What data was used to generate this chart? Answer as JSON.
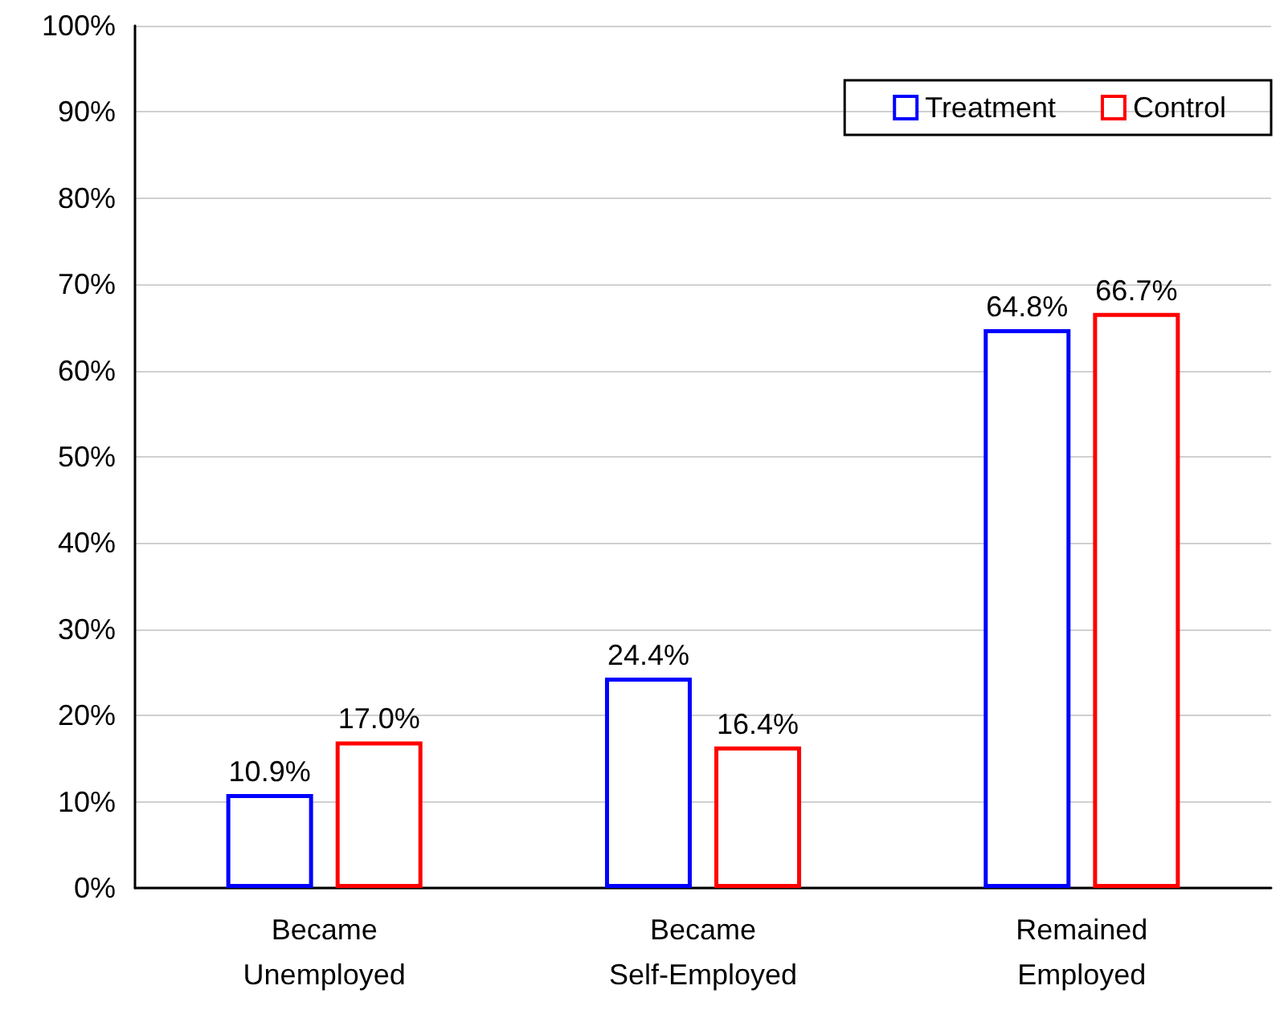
{
  "chart_data": {
    "type": "bar",
    "categories": [
      "Became Unemployed",
      "Became Self-Employed",
      "Remained Employed"
    ],
    "series": [
      {
        "name": "Treatment",
        "color": "#0000ff",
        "values": [
          10.9,
          24.4,
          64.8
        ],
        "value_labels": [
          "10.9%",
          "24.4%",
          "64.8%"
        ]
      },
      {
        "name": "Control",
        "color": "#ff0000",
        "values": [
          17.0,
          16.4,
          66.7
        ],
        "value_labels": [
          "17.0%",
          "16.4%",
          "66.7%"
        ]
      }
    ],
    "ylim": [
      0,
      100
    ],
    "yticks": [
      {
        "value": 0,
        "label": "0%"
      },
      {
        "value": 10,
        "label": "10%"
      },
      {
        "value": 20,
        "label": "20%"
      },
      {
        "value": 30,
        "label": "30%"
      },
      {
        "value": 40,
        "label": "40%"
      },
      {
        "value": 50,
        "label": "50%"
      },
      {
        "value": 60,
        "label": "60%"
      },
      {
        "value": 70,
        "label": "70%"
      },
      {
        "value": 80,
        "label": "80%"
      },
      {
        "value": 90,
        "label": "90%"
      },
      {
        "value": 100,
        "label": "100%"
      }
    ],
    "grid": "y",
    "legend": "top right"
  }
}
